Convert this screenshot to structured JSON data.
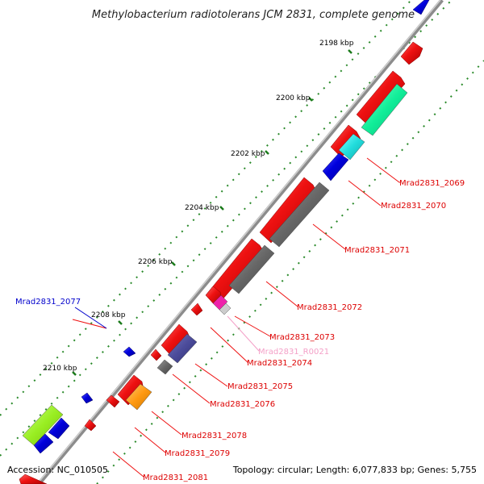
{
  "title": "Methylobacterium radiotolerans JCM 2831, complete genome",
  "footer": {
    "accession": "Accession: NC_010505",
    "summary": "Topology: circular; Length: 6,077,833 bp; Genes: 5,755"
  },
  "ticks": [
    "2198 kbp",
    "2200 kbp",
    "2202 kbp",
    "2204 kbp",
    "2206 kbp",
    "2208 kbp",
    "2210 kbp"
  ],
  "gene_labels": [
    {
      "text": "Mrad2831_2069",
      "color": "#dd0000"
    },
    {
      "text": "Mrad2831_2070",
      "color": "#dd0000"
    },
    {
      "text": "Mrad2831_2071",
      "color": "#dd0000"
    },
    {
      "text": "Mrad2831_2072",
      "color": "#dd0000"
    },
    {
      "text": "Mrad2831_2073",
      "color": "#dd0000"
    },
    {
      "text": "Mrad2831_R0021",
      "color": "#f4a0c8"
    },
    {
      "text": "Mrad2831_2074",
      "color": "#dd0000"
    },
    {
      "text": "Mrad2831_2075",
      "color": "#dd0000"
    },
    {
      "text": "Mrad2831_2076",
      "color": "#dd0000"
    },
    {
      "text": "Mrad2831_2078",
      "color": "#dd0000"
    },
    {
      "text": "Mrad2831_2079",
      "color": "#dd0000"
    },
    {
      "text": "Mrad2831_2081",
      "color": "#dd0000"
    },
    {
      "text": "Mrad2831_2077",
      "color": "#0000cc"
    }
  ],
  "colors": {
    "backbone": "#8c8c8c",
    "forward_gene": "#ee1111",
    "reverse_gene": "#0000dd",
    "cog_gray": "#666666",
    "cog_teal": "#11ee99",
    "cog_cyan": "#22dddd",
    "cog_slate": "#4b4b9a",
    "cog_orange": "#ff9911",
    "cog_lime": "#99ee22",
    "cog_pink": "#ee22aa",
    "gc_dots": "#2a8a2a"
  }
}
